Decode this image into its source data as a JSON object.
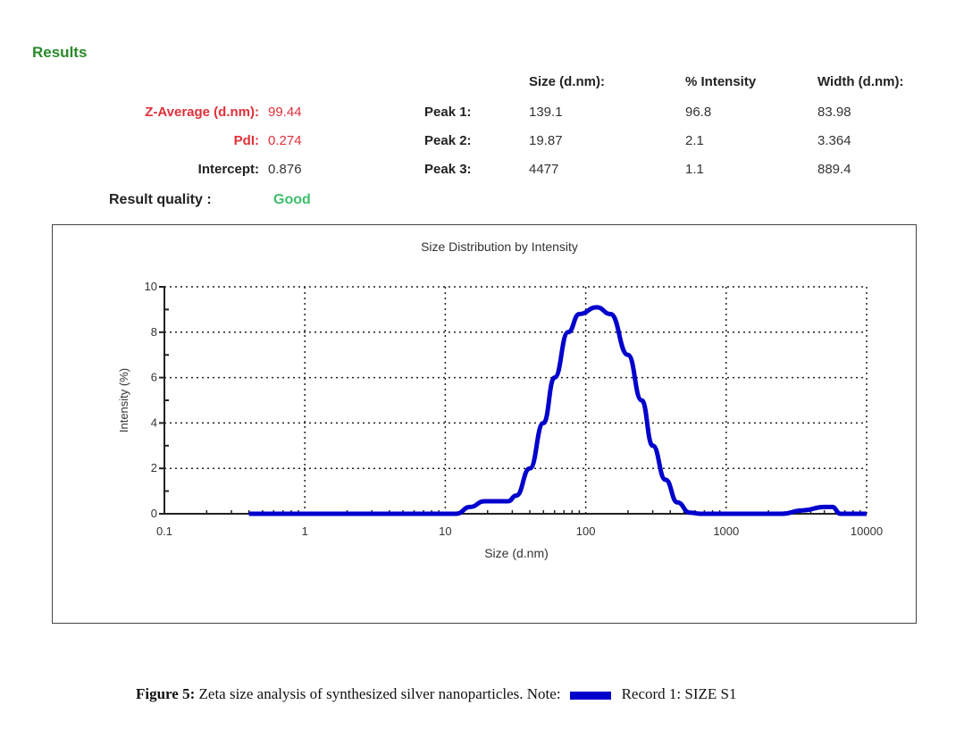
{
  "results": {
    "title": "Results",
    "z_average_label": "Z-Average (d.nm):",
    "z_average": "99.44",
    "pdi_label": "PdI:",
    "pdi": "0.274",
    "intercept_label": "Intercept:",
    "intercept": "0.876",
    "quality_label": "Result quality :",
    "quality": "Good",
    "headers": [
      "Size (d.nm):",
      "% Intensity",
      "Width (d.nm):"
    ],
    "peaks": [
      {
        "label": "Peak 1:",
        "size": "139.1",
        "intensity": "96.8",
        "width": "83.98"
      },
      {
        "label": "Peak 2:",
        "size": "19.87",
        "intensity": "2.1",
        "width": "3.364"
      },
      {
        "label": "Peak 3:",
        "size": "4477",
        "intensity": "1.1",
        "width": "889.4"
      }
    ]
  },
  "chart_data": {
    "type": "line",
    "title": "Size Distribution by Intensity",
    "xlabel": "Size (d.nm)",
    "ylabel": "Intensity (%)",
    "xscale": "log",
    "xlim": [
      0.1,
      10000
    ],
    "ylim": [
      0,
      10
    ],
    "xticks": [
      "0.1",
      "1",
      "10",
      "100",
      "1000",
      "10000"
    ],
    "yticks": [
      "0",
      "2",
      "4",
      "6",
      "8",
      "10"
    ],
    "grid": true,
    "series": [
      {
        "name": "Record 1: SIZE S1",
        "color": "#0000cc",
        "x": [
          0.4,
          12,
          15,
          19,
          28,
          32,
          40,
          50,
          60,
          75,
          90,
          120,
          150,
          200,
          250,
          300,
          370,
          450,
          550,
          650,
          2500,
          3500,
          5000,
          5700,
          6500,
          10000
        ],
        "y": [
          0,
          0,
          0.3,
          0.55,
          0.55,
          0.8,
          2,
          4,
          6,
          8,
          8.8,
          9.1,
          8.8,
          7,
          5,
          3,
          1.5,
          0.5,
          0.05,
          0,
          0,
          0.15,
          0.3,
          0.3,
          0,
          0
        ]
      }
    ]
  },
  "caption": {
    "figure": "Figure 5:",
    "text": "Zeta size analysis of synthesized silver nanoparticles. Note:",
    "legend": "Record 1: SIZE S1"
  }
}
